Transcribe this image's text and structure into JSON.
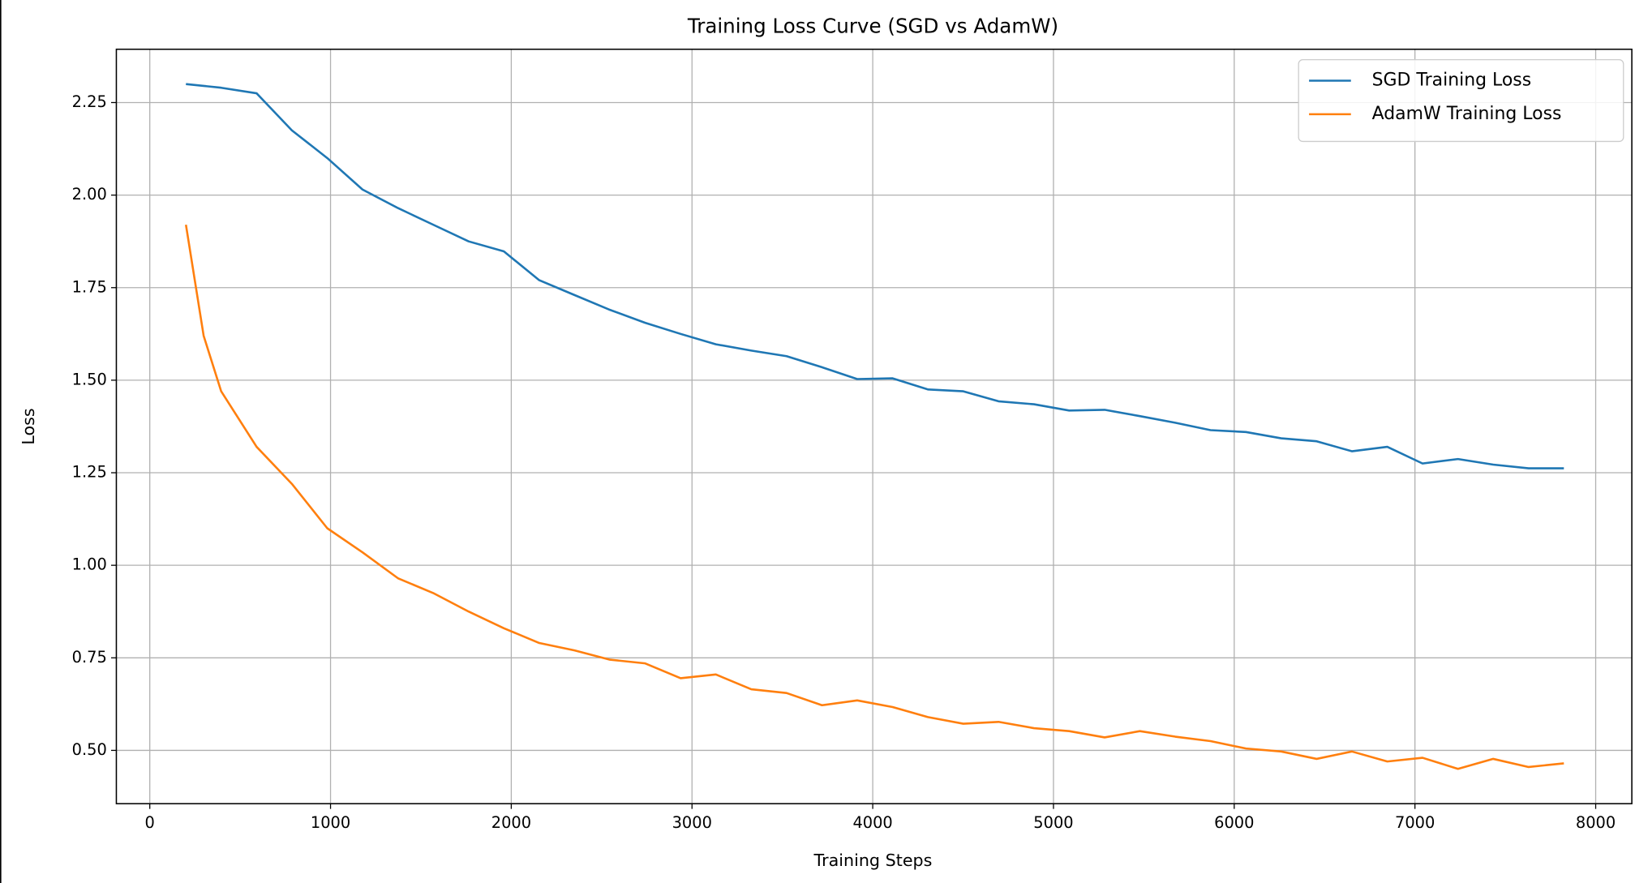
{
  "chart_data": {
    "type": "line",
    "title": "Training Loss Curve (SGD vs AdamW)",
    "x_label": "Training Steps",
    "y_label": "Loss",
    "x": [
      200,
      298,
      395,
      591,
      786,
      982,
      1177,
      1373,
      1568,
      1764,
      1959,
      2155,
      2350,
      2546,
      2741,
      2937,
      3132,
      3328,
      3523,
      3719,
      3914,
      4110,
      4305,
      4501,
      4696,
      4892,
      5087,
      5283,
      5478,
      5674,
      5869,
      6065,
      6260,
      6456,
      6651,
      6847,
      7042,
      7238,
      7433,
      7629,
      7824
    ],
    "series": [
      {
        "name": "SGD Training Loss",
        "color": "#1f77b4",
        "values": [
          2.3,
          2.295,
          2.29,
          2.275,
          2.175,
          2.1,
          2.015,
          1.965,
          1.92,
          1.875,
          1.848,
          1.77,
          1.73,
          1.69,
          1.655,
          1.625,
          1.597,
          1.58,
          1.565,
          1.535,
          1.503,
          1.505,
          1.475,
          1.47,
          1.443,
          1.435,
          1.418,
          1.42,
          1.403,
          1.385,
          1.365,
          1.36,
          1.343,
          1.335,
          1.308,
          1.32,
          1.275,
          1.287,
          1.272,
          1.262,
          1.262
        ]
      },
      {
        "name": "AdamW Training Loss",
        "color": "#ff7f0e",
        "values": [
          1.92,
          1.62,
          1.47,
          1.32,
          1.22,
          1.1,
          1.035,
          0.965,
          0.925,
          0.875,
          0.83,
          0.79,
          0.77,
          0.745,
          0.735,
          0.695,
          0.705,
          0.665,
          0.655,
          0.622,
          0.635,
          0.617,
          0.59,
          0.572,
          0.577,
          0.56,
          0.552,
          0.535,
          0.552,
          0.537,
          0.525,
          0.505,
          0.497,
          0.477,
          0.497,
          0.47,
          0.48,
          0.45,
          0.477,
          0.455,
          0.465
        ]
      }
    ],
    "xlim": [
      -185,
      8200
    ],
    "xticks": [
      0,
      1000,
      2000,
      3000,
      4000,
      5000,
      6000,
      7000,
      8000
    ],
    "ylim": [
      0.356,
      2.394
    ],
    "yticks": [
      {
        "value": 0.5,
        "label": "0.50"
      },
      0.75,
      {
        "value": 1.0,
        "label": "1.00"
      },
      1.25,
      {
        "value": 1.5,
        "label": "1.50"
      },
      1.75,
      {
        "value": 2.0,
        "label": "2.00"
      },
      2.25
    ],
    "grid": true,
    "legend": "upper right"
  }
}
